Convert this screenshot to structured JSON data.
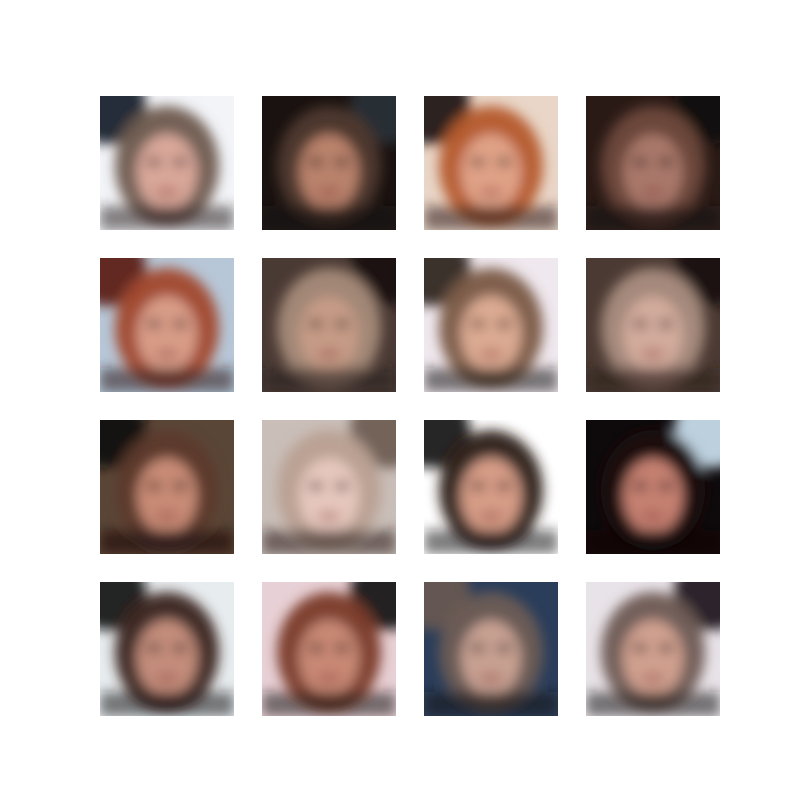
{
  "figure": {
    "kind": "generated-face-sample-grid",
    "rows": 4,
    "cols": 4,
    "samples": [
      {
        "bg": "#f2f4f8",
        "corner": "#111522",
        "hair": "#6e5a4e",
        "skin": "#d9a79a",
        "shade": "#2b1b1c"
      },
      {
        "bg": "#1a1210",
        "corner": "#2a3039",
        "hair": "#4f3a2f",
        "skin": "#b9826c",
        "shade": "#140c0c"
      },
      {
        "bg": "#e9d6c8",
        "corner": "#140b0a",
        "hair": "#b55a2a",
        "skin": "#e0a287",
        "shade": "#241312"
      },
      {
        "bg": "#2a1a16",
        "corner": "#120a08",
        "hair": "#6f4a3b",
        "skin": "#a9786a",
        "shade": "#160d0c"
      },
      {
        "bg": "#b7c7d8",
        "corner": "#5a1b12",
        "hair": "#a1462c",
        "skin": "#d89c87",
        "shade": "#2a1a18"
      },
      {
        "bg": "#4a3a34",
        "corner": "#1a1311",
        "hair": "#a78b7a",
        "skin": "#c69b86",
        "shade": "#2a201c"
      },
      {
        "bg": "#efe8ee",
        "corner": "#2a1c1a",
        "hair": "#7a5a45",
        "skin": "#dcaa92",
        "shade": "#1a1212"
      },
      {
        "bg": "#4b3a33",
        "corner": "#1a1210",
        "hair": "#a98d80",
        "skin": "#d2ab9c",
        "shade": "#2b1b1a"
      },
      {
        "bg": "#5a4637",
        "corner": "#120c0a",
        "hair": "#5c3a2d",
        "skin": "#c88b76",
        "shade": "#120b0b"
      },
      {
        "bg": "#c9beb8",
        "corner": "#6a5a50",
        "hair": "#b9a092",
        "skin": "#e6c7bd",
        "shade": "#241818"
      },
      {
        "bg": "#ffffff",
        "corner": "#0e0a0c",
        "hair": "#2c1b18",
        "skin": "#d69c86",
        "shade": "#1a1010"
      },
      {
        "bg": "#0e0a0c",
        "corner": "#cfe6f4",
        "hair": "#1c0f0e",
        "skin": "#c48071",
        "shade": "#0c0708"
      },
      {
        "bg": "#e7ecef",
        "corner": "#120b0a",
        "hair": "#3a231c",
        "skin": "#c48d7b",
        "shade": "#1a1010"
      },
      {
        "bg": "#e8d1d6",
        "corner": "#120a0a",
        "hair": "#7a3a26",
        "skin": "#c88874",
        "shade": "#1a0f0f"
      },
      {
        "bg": "#2a3d5a",
        "corner": "#6a5a52",
        "hair": "#6e5c55",
        "skin": "#c7a092",
        "shade": "#1a1414"
      },
      {
        "bg": "#e8e3e8",
        "corner": "#1a1216",
        "hair": "#6d5a52",
        "skin": "#d0a08f",
        "shade": "#1a1212"
      }
    ]
  }
}
